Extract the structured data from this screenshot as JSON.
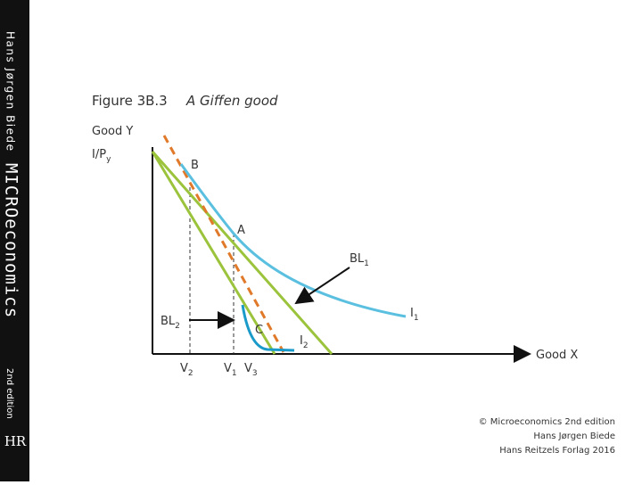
{
  "sidebar": {
    "author": "Hans Jørgen Biede",
    "brand": "MICROeconomics",
    "edition": "2nd edition",
    "logo": "HR"
  },
  "figure": {
    "number": "Figure 3B.3",
    "caption": "A Giffen good"
  },
  "axes": {
    "y_label": "Good Y",
    "x_label": "Good X",
    "y_intercept": {
      "base": "I/P",
      "sub": "y"
    }
  },
  "points": {
    "b": "B",
    "a": "A",
    "c": "C"
  },
  "curves": {
    "bl1": {
      "base": "BL",
      "sub": "1"
    },
    "bl2": {
      "base": "BL",
      "sub": "2"
    },
    "i1": {
      "base": "I",
      "sub": "1"
    },
    "i2": {
      "base": "I",
      "sub": "2"
    }
  },
  "x_marks": {
    "v2": {
      "base": "V",
      "sub": "2"
    },
    "v1": {
      "base": "V",
      "sub": "1"
    },
    "v3": {
      "base": "V",
      "sub": "3"
    }
  },
  "footer": [
    "© Microeconomics 2nd edition",
    "Hans Jørgen Biede",
    "Hans Reitzels Forlag 2016"
  ]
}
